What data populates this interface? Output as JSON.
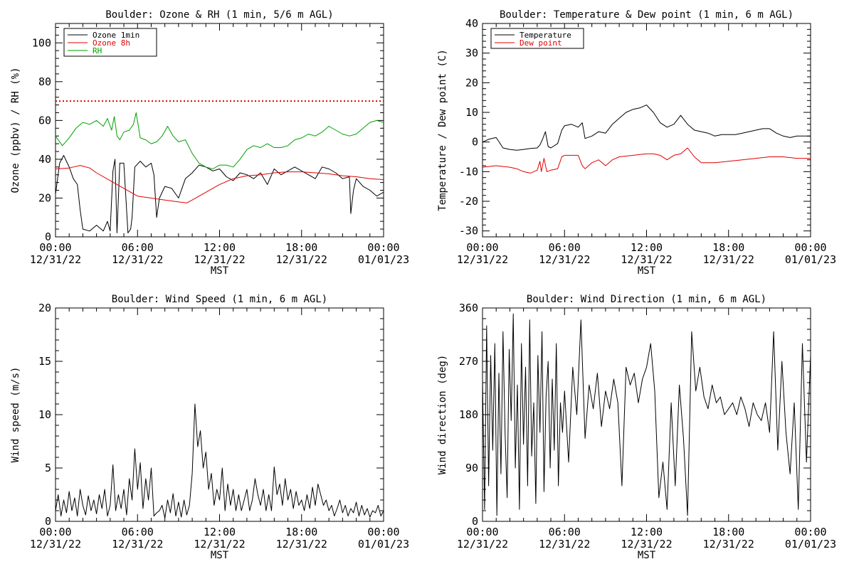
{
  "x_axis": {
    "ticks": [
      {
        "time": "00:00",
        "date": "12/31/22"
      },
      {
        "time": "06:00",
        "date": "12/31/22"
      },
      {
        "time": "12:00",
        "date": "12/31/22"
      },
      {
        "time": "18:00",
        "date": "12/31/22"
      },
      {
        "time": "00:00",
        "date": "01/01/23"
      }
    ],
    "xlabel": "MST",
    "hours_range": [
      0,
      24
    ]
  },
  "chart_data": [
    {
      "type": "line",
      "title": "Boulder: Ozone & RH (1 min, 5/6 m AGL)",
      "xlabel": "MST",
      "ylabel": "Ozone (ppbv) / RH (%)",
      "xlim_hours": [
        0,
        24
      ],
      "ylim": [
        0,
        110
      ],
      "yticks": [
        0,
        20,
        40,
        60,
        80,
        100
      ],
      "legend_position": "top-left",
      "reference_line": {
        "y": 70,
        "color": "#e00000",
        "style": "dotted"
      },
      "series": [
        {
          "name": "Ozone 1min",
          "color": "#000000",
          "x": [
            0,
            0.3,
            0.6,
            1.0,
            1.3,
            1.6,
            1.8,
            2.0,
            2.5,
            3.0,
            3.5,
            3.8,
            4.0,
            4.2,
            4.35,
            4.5,
            4.7,
            5.0,
            5.3,
            5.5,
            5.6,
            5.8,
            6.2,
            6.6,
            7.0,
            7.2,
            7.4,
            7.6,
            8.0,
            8.5,
            9.0,
            9.5,
            10.0,
            10.5,
            11.0,
            11.5,
            12.0,
            12.5,
            13.0,
            13.5,
            14.0,
            14.5,
            15.0,
            15.5,
            16.0,
            16.5,
            17.0,
            17.5,
            18.0,
            18.5,
            19.0,
            19.5,
            20.0,
            20.5,
            21.0,
            21.5,
            21.6,
            21.8,
            22.0,
            22.5,
            23.0,
            23.5,
            24.0
          ],
          "y": [
            22,
            38,
            42,
            36,
            30,
            27,
            14,
            4,
            3,
            6,
            3,
            8,
            3,
            34,
            40,
            2,
            38,
            38,
            2,
            4,
            10,
            36,
            39,
            36,
            38,
            32,
            10,
            20,
            26,
            25,
            20,
            30,
            33,
            37,
            36,
            34,
            35,
            31,
            29,
            33,
            32,
            30,
            33,
            27,
            35,
            32,
            34,
            36,
            34,
            32,
            30,
            36,
            35,
            33,
            30,
            31,
            12,
            24,
            30,
            26,
            24,
            21,
            23
          ]
        },
        {
          "name": "Ozone 8h",
          "color": "#e00000",
          "x": [
            0,
            1.0,
            1.8,
            2.5,
            3.0,
            4.0,
            5.0,
            6.0,
            7.0,
            8.0,
            9.0,
            9.6,
            10.0,
            11.0,
            12.0,
            13.0,
            14.0,
            15.0,
            16.0,
            17.0,
            18.0,
            19.0,
            20.0,
            21.0,
            22.0,
            23.0,
            24.0
          ],
          "y": [
            35,
            35.5,
            36.8,
            35.5,
            33,
            29,
            25,
            21,
            20,
            19,
            18,
            17.5,
            19,
            23,
            27,
            30,
            31.5,
            32,
            33,
            33.5,
            33.5,
            33,
            32.5,
            31.5,
            31,
            30,
            29.5
          ]
        },
        {
          "name": "RH",
          "color": "#00a000",
          "x": [
            0,
            0.5,
            1.0,
            1.5,
            2.0,
            2.5,
            3.0,
            3.5,
            3.8,
            4.1,
            4.3,
            4.5,
            4.7,
            5.0,
            5.4,
            5.7,
            5.9,
            6.2,
            6.6,
            7.0,
            7.4,
            7.8,
            8.2,
            8.6,
            9.0,
            9.5,
            10.0,
            10.5,
            11.0,
            11.5,
            12.0,
            12.5,
            13.0,
            13.5,
            14.0,
            14.5,
            15.0,
            15.5,
            16.0,
            16.5,
            17.0,
            17.5,
            18.0,
            18.5,
            19.0,
            19.5,
            20.0,
            20.5,
            21.0,
            21.5,
            22.0,
            22.5,
            23.0,
            23.5,
            24.0
          ],
          "y": [
            52,
            47,
            51,
            56,
            59,
            58,
            60,
            57,
            61,
            55,
            62,
            52,
            50,
            54,
            55,
            58,
            64,
            51,
            50,
            48,
            49,
            52,
            57,
            52,
            49,
            50,
            43,
            38,
            36,
            35,
            37,
            37,
            36,
            40,
            45,
            47,
            46,
            48,
            46,
            46,
            47,
            50,
            51,
            53,
            52,
            54,
            57,
            55,
            53,
            52,
            53,
            56,
            59,
            60,
            59
          ]
        }
      ]
    },
    {
      "type": "line",
      "title": "Boulder: Temperature & Dew point (1 min, 6 m AGL)",
      "xlabel": "MST",
      "ylabel": "Temperature / Dew point (C)",
      "xlim_hours": [
        0,
        24
      ],
      "ylim": [
        -32,
        40
      ],
      "yticks": [
        -30,
        -20,
        -10,
        0,
        10,
        20,
        30,
        40
      ],
      "legend_position": "top-left",
      "series": [
        {
          "name": "Temperature",
          "color": "#000000",
          "x": [
            0,
            0.5,
            1.0,
            1.5,
            2.0,
            2.5,
            3.0,
            3.5,
            4.0,
            4.2,
            4.4,
            4.6,
            4.8,
            5.0,
            5.5,
            5.8,
            6.0,
            6.5,
            7.0,
            7.3,
            7.5,
            8.0,
            8.5,
            9.0,
            9.5,
            10.0,
            10.5,
            11.0,
            11.5,
            12.0,
            12.5,
            13.0,
            13.5,
            14.0,
            14.5,
            15.0,
            15.5,
            16.0,
            16.5,
            17.0,
            17.5,
            18.0,
            18.5,
            19.0,
            19.5,
            20.0,
            20.5,
            21.0,
            21.5,
            22.0,
            22.5,
            23.0,
            23.5,
            24.0
          ],
          "y": [
            0,
            1,
            1.5,
            -2,
            -2.5,
            -2.8,
            -2.5,
            -2.2,
            -2,
            -1,
            1,
            3.5,
            -1.5,
            -2,
            -0.5,
            4,
            5.5,
            6,
            5,
            6.5,
            1.2,
            2,
            3.5,
            3,
            6,
            8,
            10,
            11,
            11.5,
            12.5,
            10,
            6.5,
            5,
            6,
            9,
            6,
            4,
            3.5,
            3,
            2,
            2.5,
            2.5,
            2.5,
            3,
            3.5,
            4,
            4.5,
            4.5,
            3,
            2,
            1.5,
            2,
            2,
            2
          ]
        },
        {
          "name": "Dew point",
          "color": "#e00000",
          "x": [
            0,
            1.0,
            2.0,
            2.5,
            3.0,
            3.5,
            4.0,
            4.2,
            4.3,
            4.5,
            4.7,
            5.0,
            5.5,
            5.8,
            6.0,
            6.5,
            7.0,
            7.3,
            7.5,
            8.0,
            8.5,
            9.0,
            9.5,
            10.0,
            11.0,
            12.0,
            12.5,
            13.0,
            13.5,
            14.0,
            14.5,
            15.0,
            15.5,
            16.0,
            17.0,
            18.0,
            19.0,
            20.0,
            21.0,
            22.0,
            23.0,
            24.0
          ],
          "y": [
            -8.5,
            -8,
            -8.5,
            -9,
            -10,
            -10.5,
            -9.5,
            -6.5,
            -10,
            -5.5,
            -10,
            -9.5,
            -9,
            -5,
            -4.5,
            -4.5,
            -4.5,
            -8,
            -9,
            -7,
            -6,
            -8,
            -6,
            -5,
            -4.5,
            -4,
            -4,
            -4.5,
            -6,
            -4.5,
            -4,
            -2,
            -5,
            -7,
            -7,
            -6.5,
            -6,
            -5.5,
            -5,
            -5,
            -5.5,
            -5.5
          ]
        }
      ]
    },
    {
      "type": "line",
      "title": "Boulder: Wind Speed (1 min, 6 m AGL)",
      "xlabel": "MST",
      "ylabel": "Wind speed (m/s)",
      "xlim_hours": [
        0,
        24
      ],
      "ylim": [
        0,
        20
      ],
      "yticks": [
        0,
        5,
        10,
        15,
        20
      ],
      "series": [
        {
          "name": "",
          "color": "#000000",
          "x": [
            0,
            0.2,
            0.4,
            0.6,
            0.8,
            1.0,
            1.2,
            1.4,
            1.6,
            1.8,
            2.0,
            2.2,
            2.4,
            2.6,
            2.8,
            3.0,
            3.2,
            3.4,
            3.6,
            3.8,
            4.0,
            4.2,
            4.4,
            4.6,
            4.8,
            5.0,
            5.2,
            5.4,
            5.6,
            5.8,
            6.0,
            6.2,
            6.4,
            6.6,
            6.8,
            7.0,
            7.2,
            7.4,
            7.6,
            7.8,
            8.0,
            8.2,
            8.4,
            8.6,
            8.8,
            9.0,
            9.2,
            9.4,
            9.6,
            9.8,
            10.0,
            10.2,
            10.4,
            10.6,
            10.8,
            11.0,
            11.2,
            11.4,
            11.6,
            11.8,
            12.0,
            12.2,
            12.4,
            12.6,
            12.8,
            13.0,
            13.2,
            13.4,
            13.6,
            13.8,
            14.0,
            14.2,
            14.4,
            14.6,
            14.8,
            15.0,
            15.2,
            15.4,
            15.6,
            15.8,
            16.0,
            16.2,
            16.4,
            16.6,
            16.8,
            17.0,
            17.2,
            17.4,
            17.6,
            17.8,
            18.0,
            18.2,
            18.4,
            18.6,
            18.8,
            19.0,
            19.2,
            19.4,
            19.6,
            19.8,
            20.0,
            20.2,
            20.4,
            20.6,
            20.8,
            21.0,
            21.2,
            21.4,
            21.6,
            21.8,
            22.0,
            22.2,
            22.4,
            22.6,
            22.8,
            23.0,
            23.2,
            23.4,
            23.6,
            23.8,
            24.0
          ],
          "y": [
            1,
            2.5,
            0.5,
            2,
            0.8,
            2.8,
            1,
            2.2,
            0.5,
            3,
            1.5,
            0.6,
            2.4,
            1,
            2,
            0.7,
            2.5,
            1.2,
            3,
            0.5,
            1.5,
            5.3,
            1,
            2.5,
            1.2,
            3,
            0.6,
            4,
            2,
            6.8,
            3,
            5.5,
            1.2,
            4,
            2,
            5,
            0.5,
            0.8,
            1,
            1.5,
            0.3,
            2,
            0.8,
            2.6,
            0.5,
            1.8,
            0.4,
            2,
            0.6,
            1.5,
            4.5,
            11,
            7,
            8.5,
            5,
            6.5,
            3,
            4.5,
            1.5,
            3,
            2,
            5,
            1,
            3.5,
            1.5,
            3,
            1,
            2.5,
            1,
            2,
            3,
            1,
            2,
            4,
            2.5,
            1.5,
            3,
            1,
            2.5,
            1,
            5.1,
            2.5,
            3.5,
            1.5,
            4,
            2,
            3,
            1.2,
            2.8,
            1.5,
            2,
            1,
            2.5,
            1.2,
            3.2,
            1.5,
            3.5,
            2.5,
            1.5,
            2,
            1,
            1.5,
            0.5,
            1.2,
            2,
            0.8,
            1.5,
            0.5,
            1.2,
            0.8,
            1.8,
            0.5,
            1.5,
            0.6,
            1.2,
            0.4,
            1,
            0.8,
            1.5,
            0.5,
            1
          ]
        }
      ]
    },
    {
      "type": "line",
      "title": "Boulder: Wind Direction (1 min, 6 m AGL)",
      "xlabel": "MST",
      "ylabel": "Wind direction (deg)",
      "xlim_hours": [
        0,
        24
      ],
      "ylim": [
        0,
        360
      ],
      "yticks": [
        0,
        90,
        180,
        270,
        360
      ],
      "series": [
        {
          "name": "",
          "color": "#000000",
          "x": [
            0,
            0.15,
            0.3,
            0.45,
            0.6,
            0.75,
            0.9,
            1.05,
            1.2,
            1.35,
            1.5,
            1.65,
            1.8,
            1.95,
            2.1,
            2.25,
            2.4,
            2.55,
            2.7,
            2.85,
            3.0,
            3.15,
            3.3,
            3.45,
            3.6,
            3.75,
            3.9,
            4.05,
            4.2,
            4.35,
            4.5,
            4.65,
            4.8,
            4.95,
            5.1,
            5.25,
            5.4,
            5.55,
            5.7,
            5.85,
            6.0,
            6.3,
            6.6,
            6.9,
            7.2,
            7.5,
            7.8,
            8.1,
            8.4,
            8.7,
            9.0,
            9.3,
            9.6,
            9.9,
            10.2,
            10.5,
            10.8,
            11.1,
            11.4,
            11.7,
            12.0,
            12.3,
            12.6,
            12.9,
            13.2,
            13.5,
            13.8,
            14.1,
            14.4,
            14.7,
            15.0,
            15.3,
            15.6,
            15.9,
            16.2,
            16.5,
            16.8,
            17.1,
            17.4,
            17.7,
            18.0,
            18.3,
            18.6,
            18.9,
            19.2,
            19.5,
            19.8,
            20.1,
            20.4,
            20.7,
            21.0,
            21.3,
            21.6,
            21.9,
            22.2,
            22.5,
            22.8,
            23.1,
            23.4,
            23.7,
            24.0
          ],
          "y": [
            240,
            20,
            330,
            60,
            280,
            120,
            300,
            10,
            250,
            80,
            320,
            150,
            40,
            290,
            170,
            350,
            90,
            230,
            20,
            300,
            130,
            260,
            60,
            340,
            110,
            200,
            30,
            280,
            150,
            320,
            50,
            210,
            270,
            90,
            240,
            120,
            300,
            60,
            200,
            150,
            220,
            100,
            260,
            180,
            340,
            140,
            230,
            190,
            250,
            160,
            220,
            190,
            240,
            200,
            60,
            260,
            230,
            250,
            200,
            240,
            260,
            300,
            220,
            40,
            100,
            20,
            200,
            60,
            230,
            140,
            10,
            320,
            220,
            260,
            210,
            190,
            230,
            200,
            210,
            180,
            190,
            200,
            180,
            210,
            190,
            160,
            200,
            180,
            170,
            200,
            150,
            320,
            120,
            270,
            150,
            80,
            200,
            20,
            300,
            100,
            280
          ]
        }
      ]
    }
  ]
}
